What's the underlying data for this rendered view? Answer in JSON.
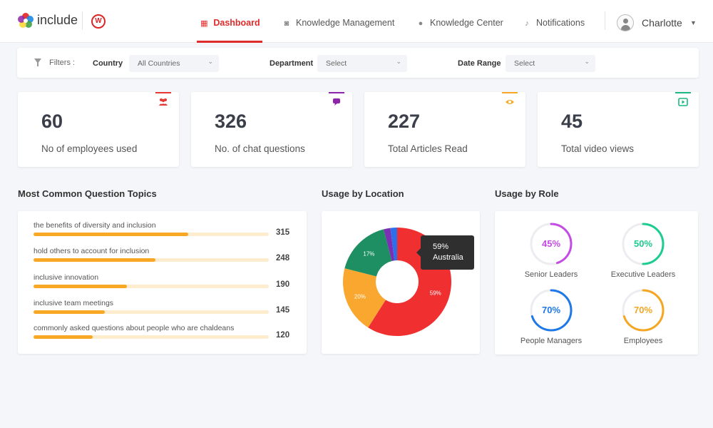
{
  "header": {
    "brand": "include",
    "w_logo": "W",
    "nav": [
      {
        "label": "Dashboard",
        "icon": "grid-icon"
      },
      {
        "label": "Knowledge Management",
        "icon": "camera-icon"
      },
      {
        "label": "Knowledge Center",
        "icon": "info-icon"
      },
      {
        "label": "Notifications",
        "icon": "bell-icon"
      }
    ],
    "user": {
      "name": "Charlotte",
      "caret": "▼"
    }
  },
  "filters": {
    "label": "Filters :",
    "country": {
      "label": "Country",
      "value": "All Countries"
    },
    "department": {
      "label": "Department",
      "value": "Select"
    },
    "date_range": {
      "label": "Date Range",
      "value": "Select"
    },
    "caret": "⌄"
  },
  "stats": [
    {
      "value": "60",
      "label": "No of employees used",
      "color": "#e53935",
      "icon": "users-icon"
    },
    {
      "value": "326",
      "label": "No. of chat questions",
      "color": "#8e24aa",
      "icon": "chat-icon"
    },
    {
      "value": "227",
      "label": "Total Articles Read",
      "color": "#f9a825",
      "icon": "eye-icon"
    },
    {
      "value": "45",
      "label": "Total video views",
      "color": "#1db980",
      "icon": "video-icon"
    }
  ],
  "topics": {
    "title": "Most Common Question Topics",
    "items": [
      {
        "label": "the benefits of diversity and inclusion",
        "value": 315,
        "value_text": "315"
      },
      {
        "label": "hold others to account for inclusion",
        "value": 248,
        "value_text": "248"
      },
      {
        "label": "inclusive innovation",
        "value": 190,
        "value_text": "190"
      },
      {
        "label": "inclusive team meetings",
        "value": 145,
        "value_text": "145"
      },
      {
        "label": "commonly asked questions about people who are chaldeans",
        "value": 120,
        "value_text": "120"
      }
    ],
    "max": 480
  },
  "location": {
    "title": "Usage by Location",
    "tooltip": {
      "percent": "59%",
      "country": "Australia"
    }
  },
  "chart_data": {
    "type": "pie",
    "donut": true,
    "slices": [
      {
        "label": "59%",
        "value": 59,
        "color": "#f03030"
      },
      {
        "label": "20%",
        "value": 20,
        "color": "#f9a72e"
      },
      {
        "label": "17%",
        "value": 17,
        "color": "#1e8f62"
      },
      {
        "label": "",
        "value": 2,
        "color": "#7b2fb3"
      },
      {
        "label": "",
        "value": 2,
        "color": "#2e6ee8"
      }
    ]
  },
  "roles": {
    "title": "Usage by Role",
    "items": [
      {
        "label": "Senior Leaders",
        "percent": "45%",
        "value": 45,
        "color": "#c44be3"
      },
      {
        "label": "Executive Leaders",
        "percent": "50%",
        "value": 50,
        "color": "#1dcc8f"
      },
      {
        "label": "People Managers",
        "percent": "70%",
        "value": 70,
        "color": "#1e78e8"
      },
      {
        "label": "Employees",
        "percent": "70%",
        "value": 70,
        "color": "#f5a623"
      }
    ]
  }
}
